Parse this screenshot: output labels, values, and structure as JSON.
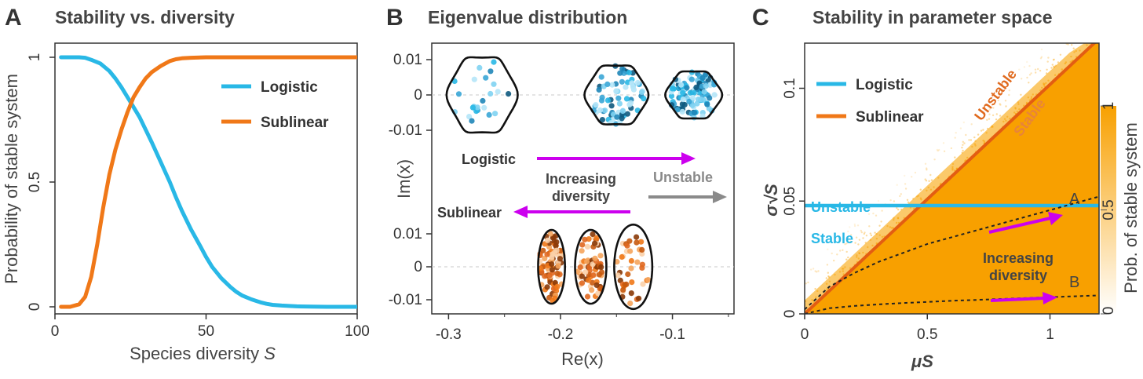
{
  "panels": {
    "a": {
      "letter": "A",
      "title": "Stability vs. diversity"
    },
    "b": {
      "letter": "B",
      "title": "Eigenvalue distribution"
    },
    "c": {
      "letter": "C",
      "title": "Stability in parameter space"
    }
  },
  "colors": {
    "logistic": "#29b8e6",
    "sublinear": "#f07818",
    "magenta": "#cc00ee",
    "gray": "#8a8a8a",
    "orange_fill": "#f8a000",
    "dark_blue": "#0f5a80"
  },
  "chart_data": [
    {
      "type": "line",
      "panel": "A",
      "title": "Stability vs. diversity",
      "xlabel": "Species diversity ",
      "xlabel_var": "S",
      "ylabel": "Probability of stable system",
      "xlim": [
        0,
        100
      ],
      "ylim": [
        0,
        1
      ],
      "xticks": [
        {
          "v": 0,
          "label": "0"
        },
        {
          "v": 50,
          "label": "50"
        },
        {
          "v": 100,
          "label": "100"
        }
      ],
      "yticks": [
        {
          "v": 0,
          "label": "0"
        },
        {
          "v": 0.5,
          "label": "0.5"
        },
        {
          "v": 1,
          "label": "1"
        }
      ],
      "legend_position": "right",
      "series": [
        {
          "name": "Logistic",
          "color": "#29b8e6",
          "x": [
            2,
            5,
            8,
            10,
            12,
            15,
            18,
            20,
            22,
            25,
            28,
            30,
            32,
            35,
            38,
            40,
            42,
            45,
            48,
            50,
            52,
            55,
            58,
            60,
            62,
            65,
            68,
            70,
            72,
            75,
            78,
            80,
            85,
            90,
            95,
            100
          ],
          "y": [
            1.0,
            1.0,
            1.0,
            0.998,
            0.99,
            0.975,
            0.945,
            0.915,
            0.88,
            0.82,
            0.76,
            0.71,
            0.66,
            0.58,
            0.5,
            0.44,
            0.385,
            0.31,
            0.245,
            0.2,
            0.16,
            0.115,
            0.08,
            0.06,
            0.045,
            0.03,
            0.018,
            0.012,
            0.008,
            0.005,
            0.003,
            0.002,
            0.001,
            0.0,
            0.0,
            0.0
          ]
        },
        {
          "name": "Sublinear",
          "color": "#f07818",
          "x": [
            2,
            5,
            8,
            10,
            12,
            14,
            16,
            18,
            20,
            22,
            24,
            26,
            28,
            30,
            32,
            35,
            38,
            40,
            42,
            45,
            50,
            60,
            70,
            80,
            90,
            100
          ],
          "y": [
            0.0,
            0.0,
            0.01,
            0.04,
            0.12,
            0.25,
            0.4,
            0.53,
            0.63,
            0.71,
            0.78,
            0.84,
            0.88,
            0.915,
            0.94,
            0.965,
            0.985,
            0.992,
            0.996,
            0.998,
            1.0,
            1.0,
            1.0,
            1.0,
            1.0,
            1.0
          ]
        }
      ]
    },
    {
      "type": "scatter",
      "panel": "B",
      "title": "Eigenvalue distribution",
      "xlabel": "Re(x)",
      "ylabel": "Im(x)",
      "xlim": [
        -0.315,
        -0.045
      ],
      "xticks": [
        {
          "v": -0.3,
          "label": "-0.3"
        },
        {
          "v": -0.2,
          "label": "-0.2"
        },
        {
          "v": -0.1,
          "label": "-0.1"
        }
      ],
      "top_ylim": [
        -0.014,
        0.014
      ],
      "bottom_ylim": [
        -0.0135,
        0.0135
      ],
      "yticks": [
        {
          "v": 0.01,
          "label": "0.01"
        },
        {
          "v": 0,
          "label": "0"
        },
        {
          "v": -0.01,
          "label": "-0.01"
        }
      ],
      "annotations": {
        "logistic": "Logistic",
        "sublinear": "Sublinear",
        "increasing_line1": "Increasing",
        "increasing_line2": "diversity",
        "unstable": "Unstable"
      },
      "logistic_clusters": [
        {
          "center": -0.27,
          "half_width": 0.03,
          "half_height": 0.0115,
          "n": 24
        },
        {
          "center": -0.15,
          "half_width": 0.027,
          "half_height": 0.009,
          "n": 70
        },
        {
          "center": -0.081,
          "half_width": 0.024,
          "half_height": 0.0072,
          "n": 110
        }
      ],
      "sublinear_clusters": [
        {
          "center": -0.208,
          "half_width": 0.012,
          "half_height": 0.0112,
          "n": 90
        },
        {
          "center": -0.173,
          "half_width": 0.014,
          "half_height": 0.0112,
          "n": 65
        },
        {
          "center": -0.135,
          "half_width": 0.017,
          "half_height": 0.0128,
          "n": 40
        }
      ]
    },
    {
      "type": "heatmap",
      "panel": "C",
      "title": "Stability in parameter space",
      "xlabel": "μS",
      "ylabel": "σ√S",
      "xlim": [
        0,
        1.2
      ],
      "ylim": [
        0,
        0.12
      ],
      "xticks": [
        {
          "v": 0,
          "label": "0"
        },
        {
          "v": 0.5,
          "label": "0.5"
        },
        {
          "v": 1,
          "label": "1"
        }
      ],
      "yticks": [
        {
          "v": 0,
          "label": "0"
        },
        {
          "v": 0.05,
          "label": "0.05"
        },
        {
          "v": 0.1,
          "label": "0.1"
        }
      ],
      "colorbar": {
        "label": "Prob. of stable system",
        "ticks": [
          {
            "v": 0,
            "label": "0"
          },
          {
            "v": 0.5,
            "label": "0.5"
          },
          {
            "v": 1,
            "label": "1"
          }
        ],
        "low_color": "#ffffff",
        "high_color": "#f8a000"
      },
      "legend": [
        {
          "name": "Logistic",
          "color": "#29b8e6"
        },
        {
          "name": "Sublinear",
          "color": "#f07818"
        }
      ],
      "boundaries": {
        "sublinear": {
          "x": [
            0,
            1.2
          ],
          "y": [
            0,
            0.122
          ]
        },
        "logistic": {
          "x": [
            0,
            1.2
          ],
          "y": [
            0.048,
            0.048
          ]
        }
      },
      "trajectories": [
        {
          "label": "A",
          "x": [
            0,
            0.1,
            0.2,
            0.3,
            0.4,
            0.5,
            0.6,
            0.7,
            0.8,
            0.9,
            1.0,
            1.1,
            1.2
          ],
          "y": [
            0.002,
            0.012,
            0.018,
            0.023,
            0.027,
            0.031,
            0.034,
            0.037,
            0.04,
            0.043,
            0.046,
            0.049,
            0.052
          ]
        },
        {
          "label": "B",
          "x": [
            0,
            0.1,
            0.2,
            0.3,
            0.4,
            0.5,
            0.6,
            0.7,
            0.8,
            0.9,
            1.0,
            1.1,
            1.2
          ],
          "y": [
            0.0,
            0.0025,
            0.0035,
            0.0042,
            0.0048,
            0.0053,
            0.0058,
            0.0062,
            0.0066,
            0.007,
            0.0074,
            0.0078,
            0.0082
          ]
        }
      ],
      "annotations": {
        "unstable_sublinear": "Unstable",
        "stable_sublinear": "Stable",
        "unstable_logistic": "Unstable",
        "stable_logistic": "Stable",
        "increasing_line1": "Increasing",
        "increasing_line2": "diversity"
      }
    }
  ]
}
